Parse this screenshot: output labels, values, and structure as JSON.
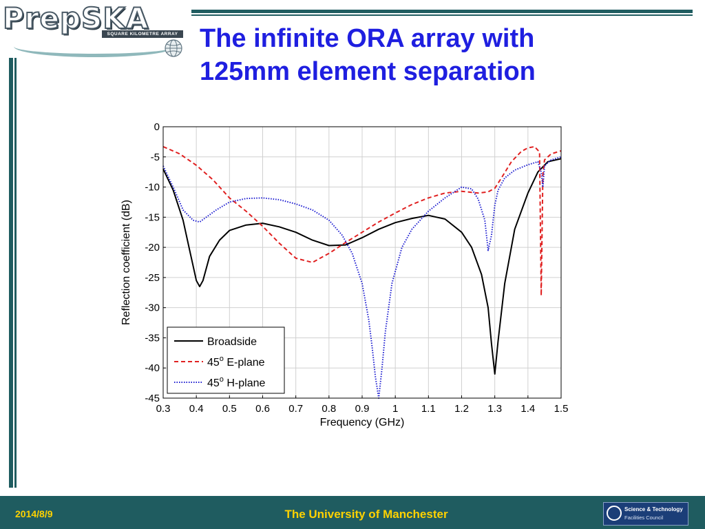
{
  "logo": {
    "name": "PrepSKA",
    "subtitle": "SQUARE KILOMETRE ARRAY"
  },
  "title": {
    "line1": "The infinite ORA array with",
    "line2": "125mm element separation"
  },
  "footer": {
    "date": "2014/8/9",
    "institution": "The University of Manchester",
    "partner": {
      "name": "Science & Technology",
      "sub": "Facilities Council"
    }
  },
  "colors": {
    "title": "#1f1fe0",
    "bar": "#1f5c60",
    "footer_text": "#ffd200"
  },
  "chart_data": {
    "type": "line",
    "title": "",
    "xlabel": "Frequency (GHz)",
    "ylabel": "Reflection coefficient (dB)",
    "xlim": [
      0.3,
      1.5
    ],
    "ylim": [
      -45,
      0
    ],
    "xticks": [
      "0.3",
      "0.4",
      "0.5",
      "0.6",
      "0.7",
      "0.8",
      "0.9",
      "1",
      "1.1",
      "1.2",
      "1.3",
      "1.4",
      "1.5"
    ],
    "yticks": [
      "0",
      "-5",
      "-10",
      "-15",
      "-20",
      "-25",
      "-30",
      "-35",
      "-40",
      "-45"
    ],
    "grid": true,
    "legend_position": "bottom-left",
    "series": [
      {
        "name": "Broadside",
        "color": "#000000",
        "style": "solid",
        "x": [
          0.3,
          0.33,
          0.36,
          0.38,
          0.4,
          0.41,
          0.42,
          0.44,
          0.47,
          0.5,
          0.55,
          0.6,
          0.65,
          0.7,
          0.75,
          0.8,
          0.85,
          0.9,
          0.95,
          1.0,
          1.05,
          1.1,
          1.15,
          1.2,
          1.23,
          1.26,
          1.28,
          1.29,
          1.3,
          1.31,
          1.33,
          1.36,
          1.4,
          1.43,
          1.46,
          1.5
        ],
        "y": [
          -7.0,
          -10.5,
          -15.5,
          -20.5,
          -25.5,
          -26.5,
          -25.5,
          -21.5,
          -18.8,
          -17.2,
          -16.3,
          -16.0,
          -16.6,
          -17.5,
          -18.8,
          -19.7,
          -19.6,
          -18.4,
          -17.0,
          -15.9,
          -15.2,
          -14.7,
          -15.3,
          -17.5,
          -20.0,
          -24.5,
          -30.0,
          -36.0,
          -41.0,
          -35.5,
          -26.0,
          -17.0,
          -11.0,
          -7.5,
          -5.8,
          -5.3
        ]
      },
      {
        "name": "45° E-plane",
        "legend_base": "45",
        "legend_sup": "o",
        "legend_rest": " E-plane",
        "color": "#e02020",
        "style": "dashed",
        "x": [
          0.3,
          0.35,
          0.4,
          0.45,
          0.5,
          0.55,
          0.6,
          0.65,
          0.7,
          0.75,
          0.8,
          0.85,
          0.9,
          0.95,
          1.0,
          1.05,
          1.1,
          1.15,
          1.2,
          1.25,
          1.28,
          1.3,
          1.32,
          1.35,
          1.38,
          1.4,
          1.42,
          1.435,
          1.44,
          1.445,
          1.45,
          1.47,
          1.5
        ],
        "y": [
          -3.3,
          -4.5,
          -6.4,
          -8.8,
          -11.8,
          -14.0,
          -16.5,
          -19.3,
          -21.8,
          -22.5,
          -21.0,
          -19.2,
          -17.5,
          -15.8,
          -14.3,
          -12.9,
          -11.8,
          -11.0,
          -10.7,
          -11.0,
          -10.8,
          -10.2,
          -8.5,
          -5.8,
          -4.1,
          -3.5,
          -3.3,
          -4.2,
          -28.0,
          -8.0,
          -5.5,
          -4.5,
          -4.0
        ]
      },
      {
        "name": "45° H-plane",
        "legend_base": "45",
        "legend_sup": "o",
        "legend_rest": " H-plane",
        "color": "#1a1ad0",
        "style": "dotted",
        "x": [
          0.3,
          0.33,
          0.36,
          0.39,
          0.41,
          0.43,
          0.46,
          0.5,
          0.55,
          0.6,
          0.65,
          0.7,
          0.75,
          0.8,
          0.84,
          0.87,
          0.9,
          0.92,
          0.93,
          0.94,
          0.95,
          0.96,
          0.97,
          0.99,
          1.02,
          1.05,
          1.1,
          1.15,
          1.2,
          1.23,
          1.25,
          1.27,
          1.28,
          1.29,
          1.3,
          1.31,
          1.33,
          1.36,
          1.4,
          1.43,
          1.44,
          1.445,
          1.45,
          1.47,
          1.5
        ],
        "y": [
          -6.5,
          -10.0,
          -13.8,
          -15.5,
          -15.8,
          -15.0,
          -13.8,
          -12.5,
          -11.9,
          -11.8,
          -12.1,
          -12.8,
          -13.8,
          -15.5,
          -18.0,
          -21.0,
          -26.0,
          -32.0,
          -36.5,
          -41.5,
          -45.0,
          -40.0,
          -34.0,
          -26.0,
          -20.0,
          -17.0,
          -14.0,
          -11.8,
          -10.0,
          -10.3,
          -12.0,
          -15.5,
          -20.5,
          -18.0,
          -13.0,
          -10.5,
          -8.5,
          -7.2,
          -6.3,
          -5.8,
          -7.5,
          -10.0,
          -6.5,
          -5.5,
          -5.0
        ]
      }
    ]
  }
}
